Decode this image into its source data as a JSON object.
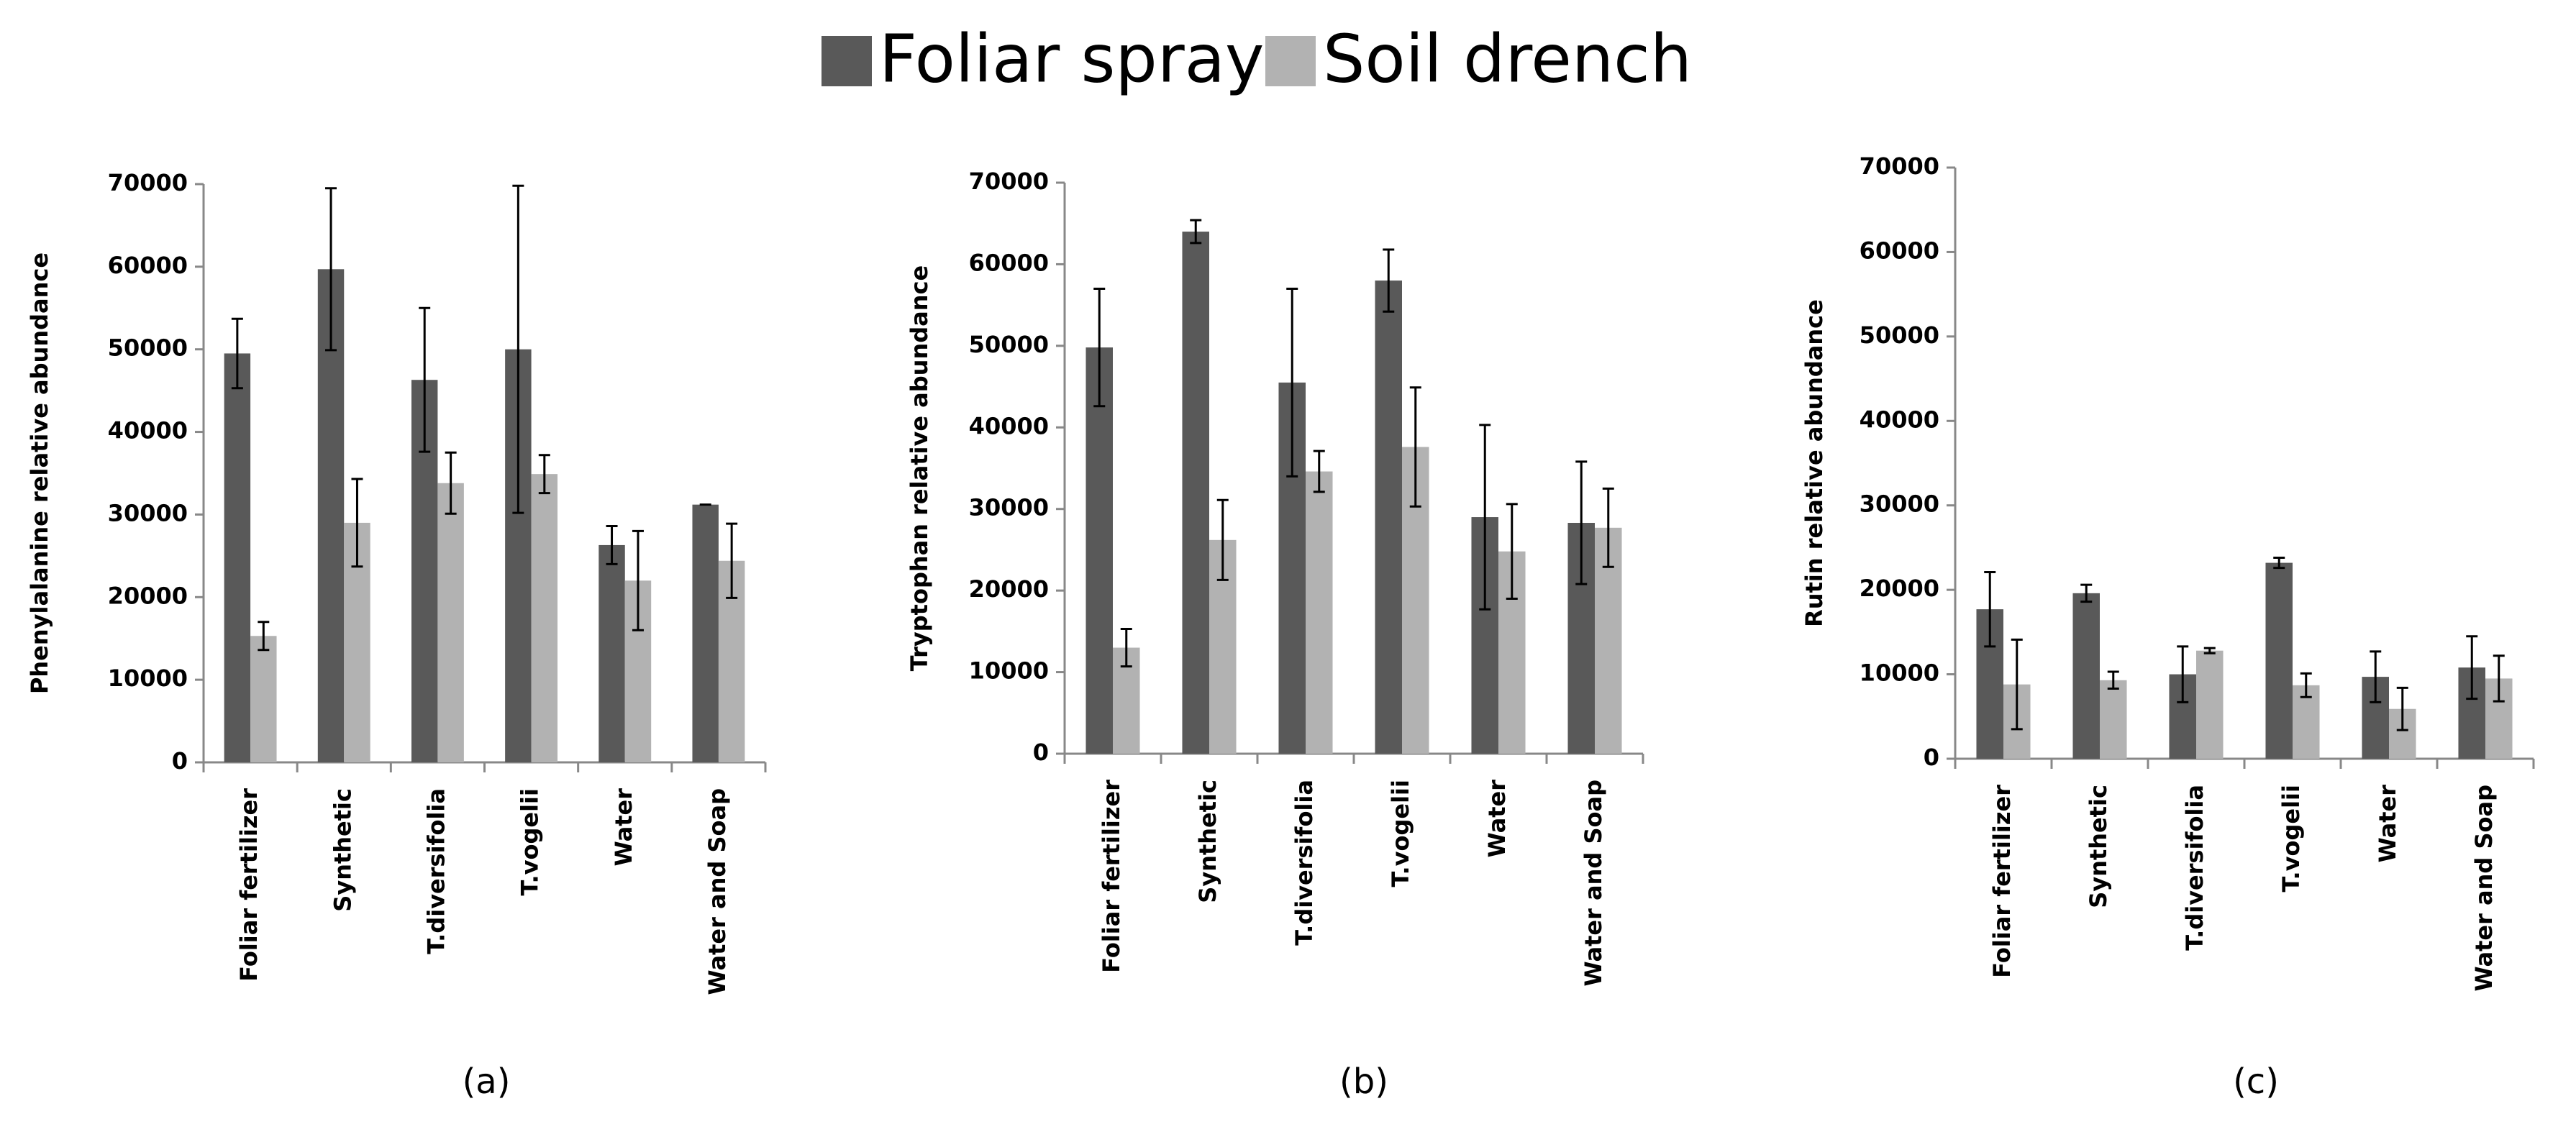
{
  "chart_data": [
    {
      "type": "bar",
      "ylabel": "Phenylalanine relative abundance",
      "caption": "(a)",
      "categories": [
        "Foliar fertilizer",
        "Synthetic",
        "T.diversifolia",
        "T.vogelii",
        "Water",
        "Water and Soap"
      ],
      "series": [
        {
          "name": "Foliar spray",
          "color": "#595959",
          "values": [
            49500,
            59700,
            46300,
            50000,
            26300,
            31200
          ],
          "errors": [
            4200,
            9800,
            8700,
            19800,
            2300,
            0
          ]
        },
        {
          "name": "Soil drench",
          "color": "#b2b2b2",
          "values": [
            15300,
            29000,
            33800,
            34900,
            22000,
            24400
          ],
          "errors": [
            1700,
            5300,
            3700,
            2300,
            6000,
            4500
          ]
        }
      ],
      "ylim": [
        0,
        70000
      ],
      "yticks": [
        0,
        10000,
        20000,
        30000,
        40000,
        50000,
        60000,
        70000
      ]
    },
    {
      "type": "bar",
      "ylabel": "Tryptophan relative abundance",
      "caption": "(b)",
      "categories": [
        "Foliar fertilizer",
        "Synthetic",
        "T.diversifolia",
        "T.vogelii",
        "Water",
        "Water and Soap"
      ],
      "series": [
        {
          "name": "Foliar spray",
          "color": "#595959",
          "values": [
            49800,
            64000,
            45500,
            58000,
            29000,
            28300
          ],
          "errors": [
            7200,
            1400,
            11500,
            3800,
            11300,
            7500
          ]
        },
        {
          "name": "Soil drench",
          "color": "#b2b2b2",
          "values": [
            13000,
            26200,
            34600,
            37600,
            24800,
            27700
          ],
          "errors": [
            2300,
            4900,
            2500,
            7300,
            5800,
            4800
          ]
        }
      ],
      "ylim": [
        0,
        70000
      ],
      "yticks": [
        0,
        10000,
        20000,
        30000,
        40000,
        50000,
        60000,
        70000
      ]
    },
    {
      "type": "bar",
      "ylabel": "Rutin relative abundance",
      "caption": "(c)",
      "categories": [
        "Foliar fertilizer",
        "Synthetic",
        "T.diversifolia",
        "T.vogelii",
        "Water",
        "Water and Soap"
      ],
      "series": [
        {
          "name": "Foliar spray",
          "color": "#595959",
          "values": [
            17700,
            19600,
            10000,
            23200,
            9700,
            10800
          ],
          "errors": [
            4400,
            1000,
            3300,
            600,
            3000,
            3700
          ]
        },
        {
          "name": "Soil drench",
          "color": "#b2b2b2",
          "values": [
            8800,
            9300,
            12800,
            8700,
            5900,
            9500
          ],
          "errors": [
            5300,
            1000,
            300,
            1400,
            2500,
            2700
          ]
        }
      ],
      "ylim": [
        0,
        70000
      ],
      "yticks": [
        0,
        10000,
        20000,
        30000,
        40000,
        50000,
        60000,
        70000
      ]
    }
  ]
}
